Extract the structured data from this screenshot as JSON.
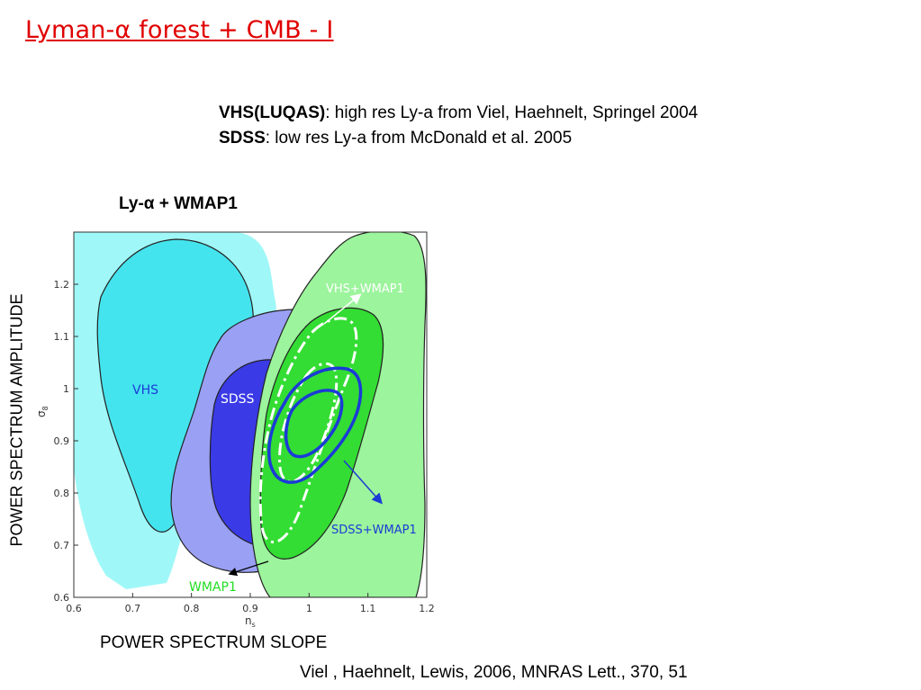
{
  "slide": {
    "title": "Lyman-α forest + CMB - I",
    "refs": [
      {
        "label": "VHS(LUQAS)",
        "text": ": high res Ly-a from Viel, Haehnelt, Springel 2004"
      },
      {
        "label": "SDSS",
        "text": ": low res Ly-a from McDonald et al. 2005"
      }
    ],
    "plot_title": "Ly-α + WMAP1",
    "yaxis_caption": "POWER SPECTRUM AMPLITUDE",
    "xaxis_caption": "POWER SPECTRUM SLOPE",
    "citation": "Viel , Haehnelt, Lewis, 2006, MNRAS Lett., 370, 51"
  },
  "chart_data": {
    "type": "contour",
    "xlabel": "n_s",
    "ylabel": "σ_8",
    "xlim": [
      0.6,
      1.2
    ],
    "ylim": [
      0.6,
      1.3
    ],
    "x_ticks": [
      "0.6",
      "0.7",
      "0.8",
      "0.9",
      "1",
      "1.1",
      "1.2"
    ],
    "y_ticks": [
      "0.6",
      "0.7",
      "0.8",
      "0.9",
      "1",
      "1.1",
      "1.2"
    ],
    "regions": [
      {
        "name": "VHS",
        "color": "#a0f7f7",
        "inner_color": "#44e4ee"
      },
      {
        "name": "SDSS",
        "color": "#9aa0f4",
        "inner_color": "#3a3ae6"
      },
      {
        "name": "WMAP1",
        "color": "#9cf49c",
        "inner_color": "#33dd33"
      }
    ],
    "annotations": [
      {
        "text": "VHS",
        "color": "#1b3bd6"
      },
      {
        "text": "SDSS",
        "color": "#ffffff"
      },
      {
        "text": "VHS+WMAP1",
        "color": "#ffffff"
      },
      {
        "text": "SDSS+WMAP1",
        "color": "#1b3bd6"
      },
      {
        "text": "WMAP1",
        "color": "#22dd22"
      }
    ],
    "overlay_contours": [
      {
        "name": "VHS+WMAP1",
        "color": "#ffffff",
        "style": "dash-dot"
      },
      {
        "name": "SDSS+WMAP1",
        "color": "#1b3bd6",
        "style": "solid"
      }
    ]
  }
}
